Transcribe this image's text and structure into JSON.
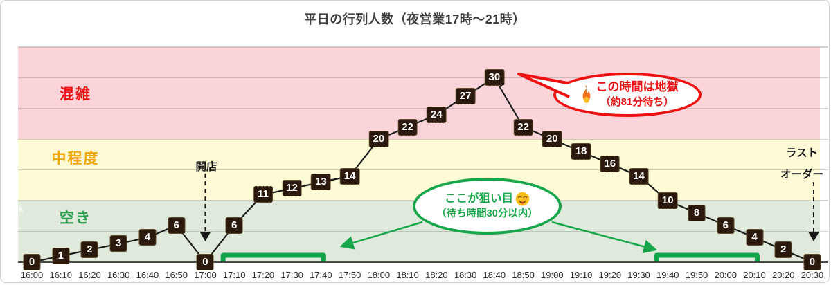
{
  "title": "平日の行列人数（夜営業17時〜21時）",
  "chart_data": {
    "type": "line",
    "x": [
      "16:00",
      "16:10",
      "16:20",
      "16:30",
      "16:40",
      "16:50",
      "17:00",
      "17:10",
      "17:20",
      "17:30",
      "17:40",
      "17:50",
      "18:00",
      "18:10",
      "18:20",
      "18:30",
      "18:40",
      "18:50",
      "19:00",
      "19:10",
      "19:20",
      "19:30",
      "19:40",
      "19:50",
      "20:00",
      "20:10",
      "20:20",
      "20:30"
    ],
    "values": [
      0,
      1,
      2,
      3,
      4,
      6,
      0,
      6,
      11,
      12,
      13,
      14,
      20,
      22,
      24,
      27,
      30,
      22,
      20,
      18,
      16,
      14,
      10,
      8,
      6,
      4,
      2,
      0
    ],
    "ylim": [
      0,
      35
    ],
    "grid_interval": 5,
    "grid": true,
    "legend": false,
    "line_color": "#1a1a1a",
    "point_label_bg": "#2b190d",
    "bands": [
      {
        "label": "混雑",
        "from": 20,
        "to": 35,
        "color": "#fad4d9",
        "label_color": "#ee1111"
      },
      {
        "label": "中程度",
        "from": 10,
        "to": 20,
        "color": "#fcfbd5",
        "label_color": "#f1a40a"
      },
      {
        "label": "空き",
        "from": 0,
        "to": 10,
        "color": "#dfe9dc",
        "label_color": "#2e9e4f"
      }
    ],
    "target_ranges": [
      [
        "17:10",
        "17:40"
      ],
      [
        "19:40",
        "20:10"
      ]
    ]
  },
  "annotations": {
    "open": {
      "label": "開店",
      "time": "17:00"
    },
    "last_order": {
      "label_line1": "ラスト",
      "label_line2": "オーダー",
      "time": "20:30"
    },
    "busy_bubble": {
      "line1": "この時間は地獄",
      "line2": "（約81分待ち）",
      "icon": "fire-icon",
      "color": "#ee1111",
      "points_at": "18:40"
    },
    "sweet_spot_bubble": {
      "line1": "ここが狙い目",
      "line2": "（待ち時間30分以内）",
      "icon": "smiley-icon",
      "color": "#17a74a"
    }
  },
  "watermark": "k"
}
